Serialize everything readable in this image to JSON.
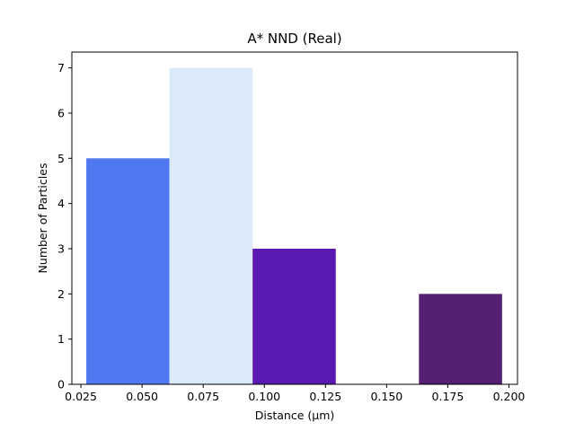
{
  "chart_data": {
    "type": "bar",
    "title": "A* NND (Real)",
    "xlabel": "Distance (µm)",
    "ylabel": "Number of Particles",
    "xlim": [
      0.0213,
      0.2035
    ],
    "ylim": [
      0,
      7.35
    ],
    "xticks": [
      0.025,
      0.05,
      0.075,
      0.1,
      0.125,
      0.15,
      0.175,
      0.2
    ],
    "xtick_labels": [
      "0.025",
      "0.050",
      "0.075",
      "0.100",
      "0.125",
      "0.150",
      "0.175",
      "0.200"
    ],
    "yticks": [
      0,
      1,
      2,
      3,
      4,
      5,
      6,
      7
    ],
    "ytick_labels": [
      "0",
      "1",
      "2",
      "3",
      "4",
      "5",
      "6",
      "7"
    ],
    "bins": [
      {
        "x0": 0.0272,
        "x1": 0.0612,
        "value": 5,
        "color": "#5078f0"
      },
      {
        "x0": 0.0612,
        "x1": 0.0952,
        "value": 7,
        "color": "#dce9f8"
      },
      {
        "x0": 0.0952,
        "x1": 0.1292,
        "value": 3,
        "color": "#5a19b0"
      },
      {
        "x0": 0.1292,
        "x1": 0.1632,
        "value": 0,
        "color": "#5a19b0"
      },
      {
        "x0": 0.1632,
        "x1": 0.1972,
        "value": 2,
        "color": "#551f72"
      }
    ],
    "grid": false,
    "legend": "none"
  }
}
